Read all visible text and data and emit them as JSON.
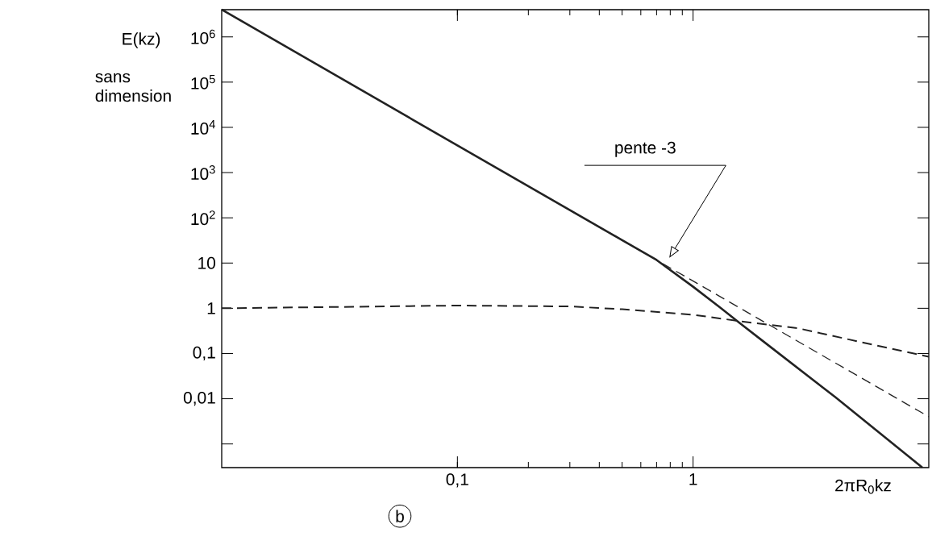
{
  "chart_data": {
    "type": "line",
    "title": "b",
    "xlabel": "2πR$_{0}$kz",
    "ylabel": "E(kz)",
    "log": "xy",
    "xlim": [
      0.01,
      10
    ],
    "ylim": [
      0.0003,
      4000000
    ],
    "xticks": [
      {
        "value": 0.1,
        "label": "0,1"
      },
      1
    ],
    "yticks": [
      {
        "value": 1000000,
        "label": "10$^{6}$"
      },
      {
        "value": 100000,
        "label": "10$^{5}$"
      },
      {
        "value": 10000,
        "label": "10$^{4}$"
      },
      {
        "value": 1000,
        "label": "10$^{3}$"
      },
      {
        "value": 100,
        "label": "10$^{2}$"
      },
      10,
      1,
      {
        "value": 0.1,
        "label": "0,1"
      },
      {
        "value": 0.01,
        "label": "0,01"
      },
      {
        "value": 0.001,
        "label": null
      }
    ],
    "marker": "none",
    "annotations": [
      "pente -3",
      "sans dimension"
    ],
    "series": [
      {
        "color": "#222222",
        "line_style": "solid",
        "x": [
          0.01,
          0.1,
          0.5,
          0.7,
          1.0,
          1.3,
          1.57,
          2,
          4,
          9.4
        ],
        "values": [
          4000000,
          4000,
          32,
          11.7,
          3,
          1.05,
          0.48,
          0.18,
          0.011,
          0.0003
        ]
      },
      {
        "color": "#222222",
        "line_style": "dashed",
        "x": [
          0.3,
          10
        ],
        "values": [
          148,
          0.004
        ]
      },
      {
        "color": "#222222",
        "line_style": "dashed",
        "x": [
          0.01,
          0.05,
          0.1,
          0.3,
          0.5,
          1,
          1.57,
          2.8,
          6,
          10
        ],
        "values": [
          1.0,
          1.1,
          1.15,
          1.1,
          0.95,
          0.72,
          0.52,
          0.36,
          0.15,
          0.085
        ]
      }
    ]
  }
}
